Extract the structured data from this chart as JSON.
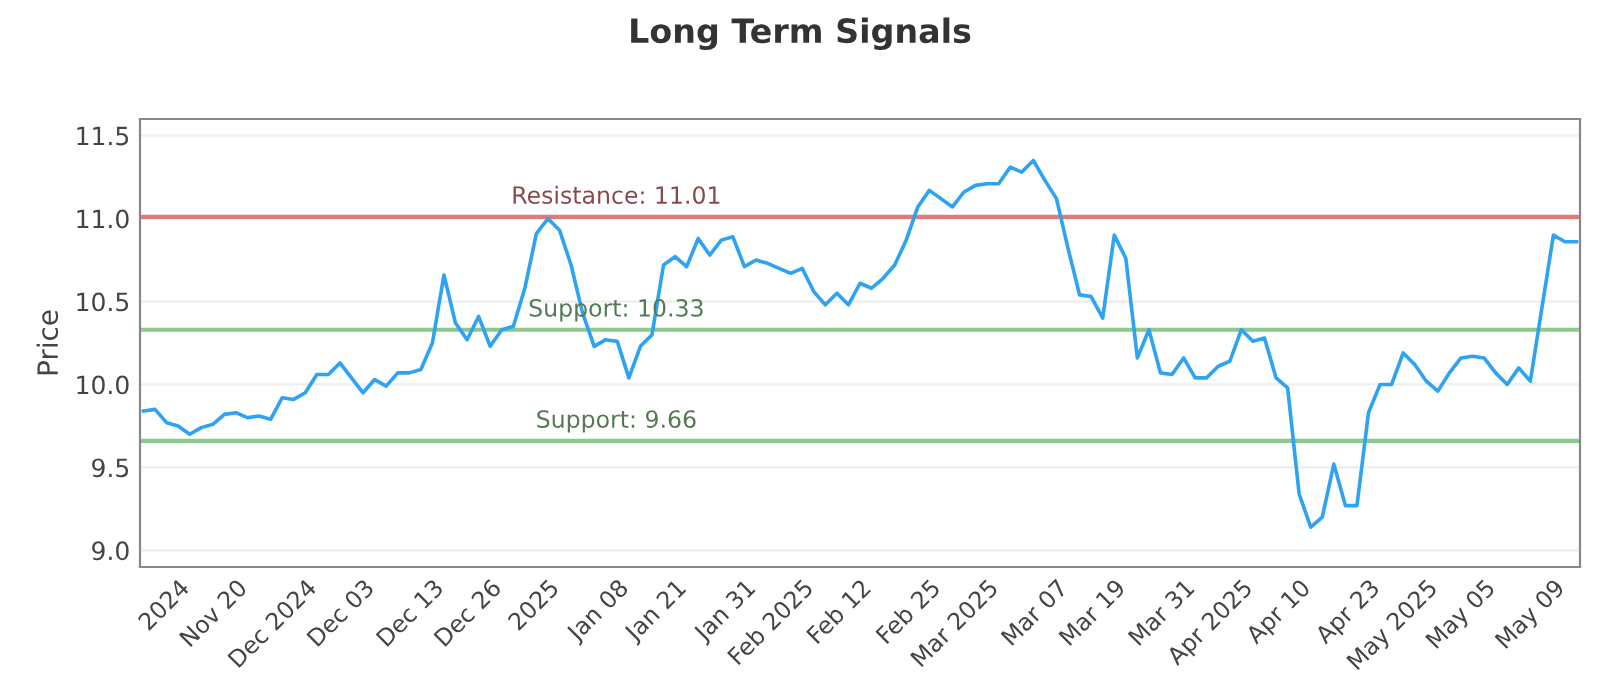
{
  "chart_data": {
    "type": "line",
    "title": "Long Term Signals",
    "ylabel": "Price",
    "categories": [
      null,
      null,
      null,
      "2024",
      null,
      null,
      null,
      null,
      "Nov 20",
      null,
      null,
      null,
      null,
      null,
      "Dec 2024",
      null,
      null,
      null,
      null,
      "Dec 03",
      null,
      null,
      null,
      null,
      null,
      "Dec 13",
      null,
      null,
      null,
      null,
      "Dec 26",
      null,
      null,
      null,
      null,
      "2025",
      null,
      null,
      null,
      null,
      null,
      "Jan 08",
      null,
      null,
      null,
      null,
      "Jan 21",
      null,
      null,
      null,
      null,
      null,
      "Jan 31",
      null,
      null,
      null,
      null,
      "Feb 2025",
      null,
      null,
      null,
      null,
      "Feb 12",
      null,
      null,
      null,
      null,
      null,
      "Feb 25",
      null,
      null,
      null,
      null,
      "Mar 2025",
      null,
      null,
      null,
      null,
      null,
      "Mar 07",
      null,
      null,
      null,
      null,
      "Mar 19",
      null,
      null,
      null,
      null,
      null,
      "Mar 31",
      null,
      null,
      null,
      null,
      "Apr 2025",
      null,
      null,
      null,
      null,
      "Apr 10",
      null,
      null,
      null,
      null,
      null,
      "Apr 23",
      null,
      null,
      null,
      null,
      "May 2025",
      null,
      null,
      null,
      null,
      "May 05",
      null,
      null,
      null,
      null,
      null,
      "May 09",
      null,
      null
    ],
    "series": [
      {
        "color": "#2ea3f2",
        "values": [
          9.84,
          9.85,
          9.77,
          9.75,
          9.7,
          9.74,
          9.76,
          9.82,
          9.83,
          9.8,
          9.81,
          9.79,
          9.92,
          9.91,
          9.95,
          10.06,
          10.06,
          10.13,
          10.04,
          9.95,
          10.03,
          9.99,
          10.07,
          10.07,
          10.09,
          10.25,
          10.66,
          10.37,
          10.27,
          10.41,
          10.23,
          10.33,
          10.35,
          10.58,
          10.91,
          11.0,
          10.93,
          10.72,
          10.43,
          10.23,
          10.27,
          10.26,
          10.04,
          10.23,
          10.3,
          10.72,
          10.77,
          10.71,
          10.88,
          10.78,
          10.87,
          10.89,
          10.71,
          10.75,
          10.73,
          10.7,
          10.67,
          10.7,
          10.56,
          10.48,
          10.55,
          10.48,
          10.61,
          10.58,
          10.64,
          10.72,
          10.87,
          11.07,
          11.17,
          11.12,
          11.07,
          11.16,
          11.2,
          11.21,
          11.21,
          11.31,
          11.28,
          11.35,
          11.23,
          11.12,
          10.82,
          10.54,
          10.53,
          10.4,
          10.9,
          10.76,
          10.16,
          10.33,
          10.07,
          10.06,
          10.16,
          10.04,
          10.04,
          10.11,
          10.14,
          10.33,
          10.26,
          10.28,
          10.04,
          9.98,
          9.34,
          9.14,
          9.2,
          9.52,
          9.27,
          9.27,
          9.83,
          10.0,
          10.0,
          10.19,
          10.12,
          10.02,
          9.96,
          10.07,
          10.16,
          10.17,
          10.16,
          10.07,
          10.0,
          10.1,
          10.02,
          10.46,
          10.9,
          10.86,
          10.86
        ]
      }
    ],
    "ylim": [
      8.9,
      11.6
    ],
    "yticks": [
      {
        "value": 9.0,
        "label": "9.0"
      },
      {
        "value": 9.5,
        "label": "9.5"
      },
      {
        "value": 10.0,
        "label": "10.0"
      },
      {
        "value": 10.5,
        "label": "10.5"
      },
      {
        "value": 11.0,
        "label": "11.0"
      },
      {
        "value": 11.5,
        "label": "11.5"
      }
    ],
    "ref_lines": [
      {
        "axis": "y",
        "value": 11.01,
        "label": "Resistance: 11.01",
        "color": "#e07b7b"
      },
      {
        "axis": "y",
        "value": 10.33,
        "label": "Support: 10.33",
        "color": "#8cc98c"
      },
      {
        "axis": "y",
        "value": 9.66,
        "label": "Support: 9.66",
        "color": "#8cc98c"
      }
    ],
    "grid": "y",
    "marker": "none",
    "line_style": "solid"
  }
}
